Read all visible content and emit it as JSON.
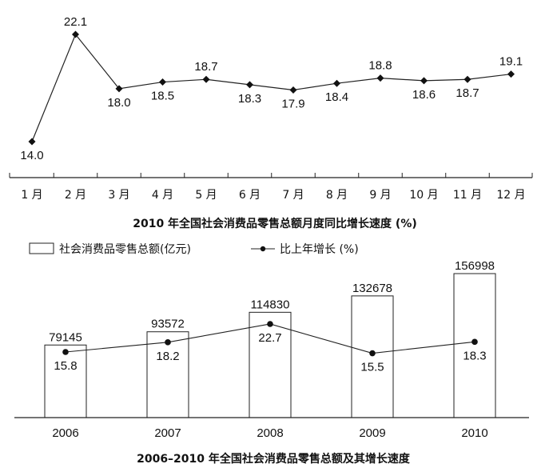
{
  "chart_data": [
    {
      "type": "line",
      "title": "2010 年全国社会消费品零售总额月度同比增长速度 (%)",
      "categories": [
        "1 月",
        "2 月",
        "3 月",
        "4 月",
        "5 月",
        "6 月",
        "7 月",
        "8 月",
        "9 月",
        "10 月",
        "11 月",
        "12 月"
      ],
      "values": [
        14.0,
        22.1,
        18.0,
        18.5,
        18.7,
        18.3,
        17.9,
        18.4,
        18.8,
        18.6,
        18.7,
        19.1
      ],
      "value_labels": [
        "14.0",
        "22.1",
        "18.0",
        "18.5",
        "18.7",
        "18.3",
        "17.9",
        "18.4",
        "18.8",
        "18.6",
        "18.7",
        "19.1"
      ],
      "ylim": [
        12,
        23
      ],
      "grid": false,
      "marker": "diamond"
    },
    {
      "type": "bar",
      "title": "2006–2010 年全国社会消费品零售总额及其增长速度",
      "categories": [
        "2006",
        "2007",
        "2008",
        "2009",
        "2010"
      ],
      "series": [
        {
          "name": "社会消费品零售总额(亿元)",
          "type": "bar",
          "values": [
            79145,
            93572,
            114830,
            132678,
            156998
          ],
          "value_labels": [
            "79145",
            "93572",
            "114830",
            "132678",
            "156998"
          ]
        },
        {
          "name": "比上年增长 (%)",
          "type": "line",
          "values": [
            15.8,
            18.2,
            22.7,
            15.5,
            18.3
          ],
          "value_labels": [
            "15.8",
            "18.2",
            "22.7",
            "15.5",
            "18.3"
          ]
        }
      ],
      "bar_ylim": [
        0,
        165000
      ],
      "line_ylim": [
        0,
        32
      ],
      "legend_position": "top-left",
      "grid": false
    }
  ]
}
